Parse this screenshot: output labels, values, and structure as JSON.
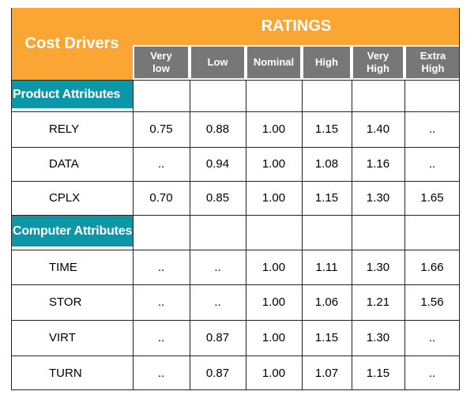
{
  "header": {
    "cost_drivers": "Cost Drivers",
    "ratings": "RATINGS",
    "columns": [
      [
        "Very",
        "low"
      ],
      [
        "Low"
      ],
      [
        "Nominal"
      ],
      [
        "High"
      ],
      [
        "Very",
        "High"
      ],
      [
        "Extra",
        "High"
      ]
    ]
  },
  "rows": [
    {
      "type": "section",
      "label": "Product Attributes"
    },
    {
      "type": "data",
      "name": "RELY",
      "values": [
        "0.75",
        "0.88",
        "1.00",
        "1.15",
        "1.40",
        ".."
      ]
    },
    {
      "type": "data",
      "name": "DATA",
      "values": [
        "..",
        "0.94",
        "1.00",
        "1.08",
        "1.16",
        ".."
      ]
    },
    {
      "type": "data",
      "name": "CPLX",
      "values": [
        "0.70",
        "0.85",
        "1.00",
        "1.15",
        "1.30",
        "1.65"
      ]
    },
    {
      "type": "section",
      "label": "Computer Attributes"
    },
    {
      "type": "data",
      "name": "TIME",
      "values": [
        "..",
        "..",
        "1.00",
        "1.11",
        "1.30",
        "1.66"
      ]
    },
    {
      "type": "data",
      "name": "STOR",
      "values": [
        "..",
        "..",
        "1.00",
        "1.06",
        "1.21",
        "1.56"
      ]
    },
    {
      "type": "data",
      "name": "VIRT",
      "values": [
        "..",
        "0.87",
        "1.00",
        "1.15",
        "1.30",
        ".."
      ]
    },
    {
      "type": "data",
      "name": "TURN",
      "values": [
        "..",
        "0.87",
        "1.00",
        "1.07",
        "1.15",
        ".."
      ]
    }
  ],
  "colors": {
    "header_orange": "#fba534",
    "column_gray": "#777777",
    "section_teal": "#0c97a8"
  }
}
